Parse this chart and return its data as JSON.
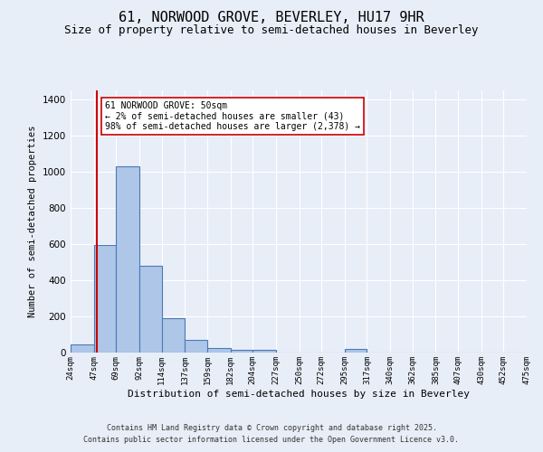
{
  "title_line1": "61, NORWOOD GROVE, BEVERLEY, HU17 9HR",
  "title_line2": "Size of property relative to semi-detached houses in Beverley",
  "xlabel": "Distribution of semi-detached houses by size in Beverley",
  "ylabel": "Number of semi-detached properties",
  "footnote1": "Contains HM Land Registry data © Crown copyright and database right 2025.",
  "footnote2": "Contains public sector information licensed under the Open Government Licence v3.0.",
  "annotation_title": "61 NORWOOD GROVE: 50sqm",
  "annotation_line2": "← 2% of semi-detached houses are smaller (43)",
  "annotation_line3": "98% of semi-detached houses are larger (2,378) →",
  "bin_edges": [
    24,
    47,
    69,
    92,
    114,
    137,
    159,
    182,
    204,
    227,
    250,
    272,
    295,
    317,
    340,
    362,
    385,
    407,
    430,
    452,
    475
  ],
  "bin_counts": [
    43,
    595,
    1030,
    478,
    192,
    70,
    25,
    15,
    15,
    0,
    0,
    0,
    22,
    0,
    0,
    0,
    0,
    0,
    0,
    0
  ],
  "bar_facecolor": "#aec6e8",
  "bar_edgecolor": "#4a7ab5",
  "vline_color": "#cc0000",
  "vline_x": 50,
  "ylim": [
    0,
    1450
  ],
  "background_color": "#e8eef8",
  "grid_color": "#ffffff",
  "annotation_box_color": "#ffffff",
  "annotation_box_edgecolor": "#cc0000",
  "title_fontsize": 11,
  "subtitle_fontsize": 9,
  "tick_fontsize": 6.5,
  "ylabel_fontsize": 7.5,
  "xlabel_fontsize": 8,
  "footnote_fontsize": 6,
  "annot_fontsize": 7
}
